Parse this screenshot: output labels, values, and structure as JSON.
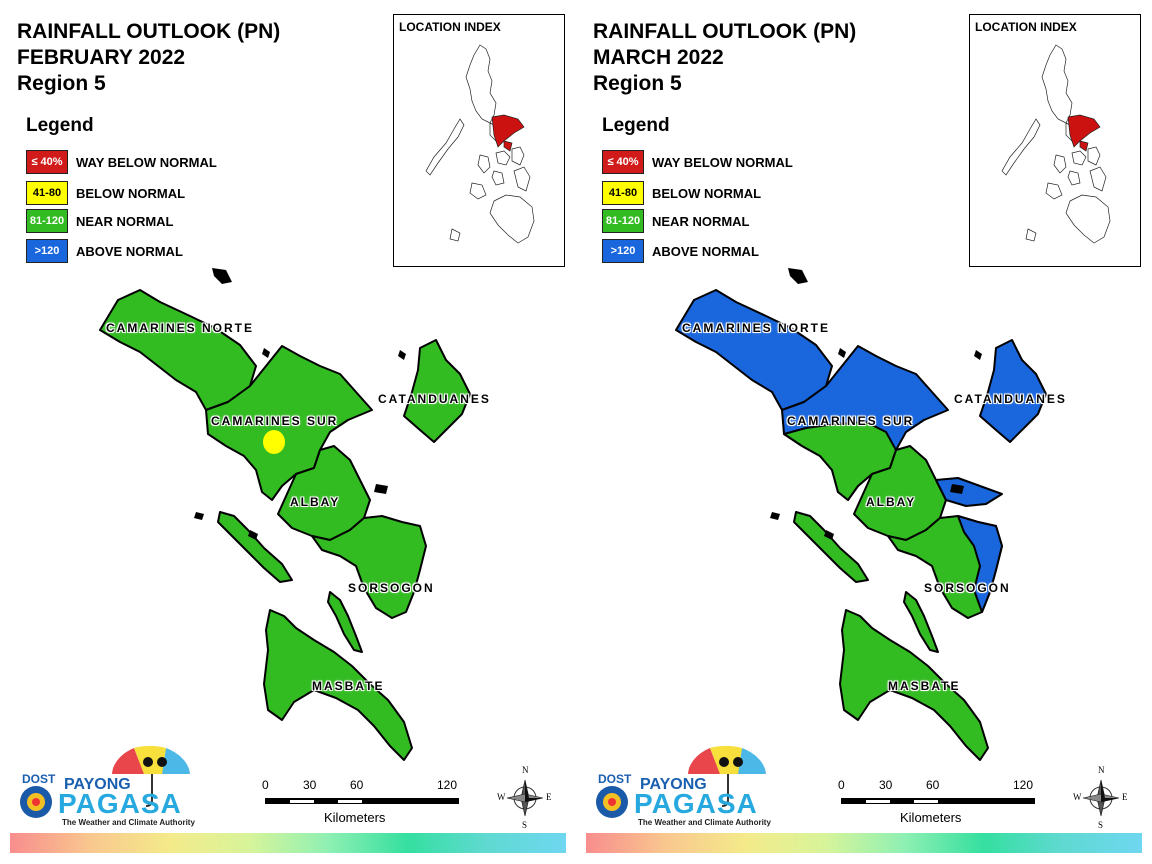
{
  "panels": [
    {
      "title_line1": "RAINFALL OUTLOOK (PN)",
      "title_line2": "FEBRUARY 2022",
      "title_line3": "Region 5"
    },
    {
      "title_line1": "RAINFALL OUTLOOK (PN)",
      "title_line2": "MARCH 2022",
      "title_line3": "Region 5"
    }
  ],
  "legend": {
    "heading": "Legend",
    "items": [
      {
        "range": "≤ 40%",
        "label": "WAY BELOW NORMAL",
        "color": "#d11a1a",
        "text_color": "#ffffff"
      },
      {
        "range": "41-80",
        "label": "BELOW NORMAL",
        "color": "#ffff00",
        "text_color": "#000000"
      },
      {
        "range": "81-120",
        "label": "NEAR NORMAL",
        "color": "#33bb22",
        "text_color": "#ffffff"
      },
      {
        "range": ">120",
        "label": "ABOVE NORMAL",
        "color": "#1a66dd",
        "text_color": "#ffffff"
      }
    ]
  },
  "location_index": {
    "title": "LOCATION INDEX",
    "highlight_color": "#cc1111"
  },
  "provinces": {
    "camarines_norte": "CAMARINES NORTE",
    "camarines_sur": "CAMARINES SUR",
    "catanduanes": "CATANDUANES",
    "albay": "ALBAY",
    "sorsogon": "SORSOGON",
    "masbate": "MASBATE"
  },
  "map_categories": {
    "february": {
      "camarines_norte": "NEAR NORMAL",
      "camarines_sur": "NEAR NORMAL",
      "camarines_sur_spot": "BELOW NORMAL",
      "catanduanes": "NEAR NORMAL",
      "albay": "NEAR NORMAL",
      "sorsogon": "NEAR NORMAL",
      "masbate": "NEAR NORMAL"
    },
    "march": {
      "camarines_norte": "ABOVE NORMAL",
      "camarines_sur": "ABOVE NORMAL",
      "camarines_sur_south": "NEAR NORMAL",
      "catanduanes": "ABOVE NORMAL",
      "albay": "NEAR NORMAL",
      "albay_east": "ABOVE NORMAL",
      "sorsogon": "NEAR NORMAL",
      "sorsogon_east": "ABOVE NORMAL",
      "masbate": "NEAR NORMAL"
    }
  },
  "logo": {
    "dost": "DOST",
    "payong": "PAYONG",
    "pagasa": "PAGASA",
    "tagline": "The Weather and Climate Authority"
  },
  "scale": {
    "ticks": [
      "0",
      "30",
      "60",
      "120"
    ],
    "unit": "Kilometers"
  },
  "compass": {
    "n": "N",
    "s": "S",
    "e": "E",
    "w": "W"
  }
}
